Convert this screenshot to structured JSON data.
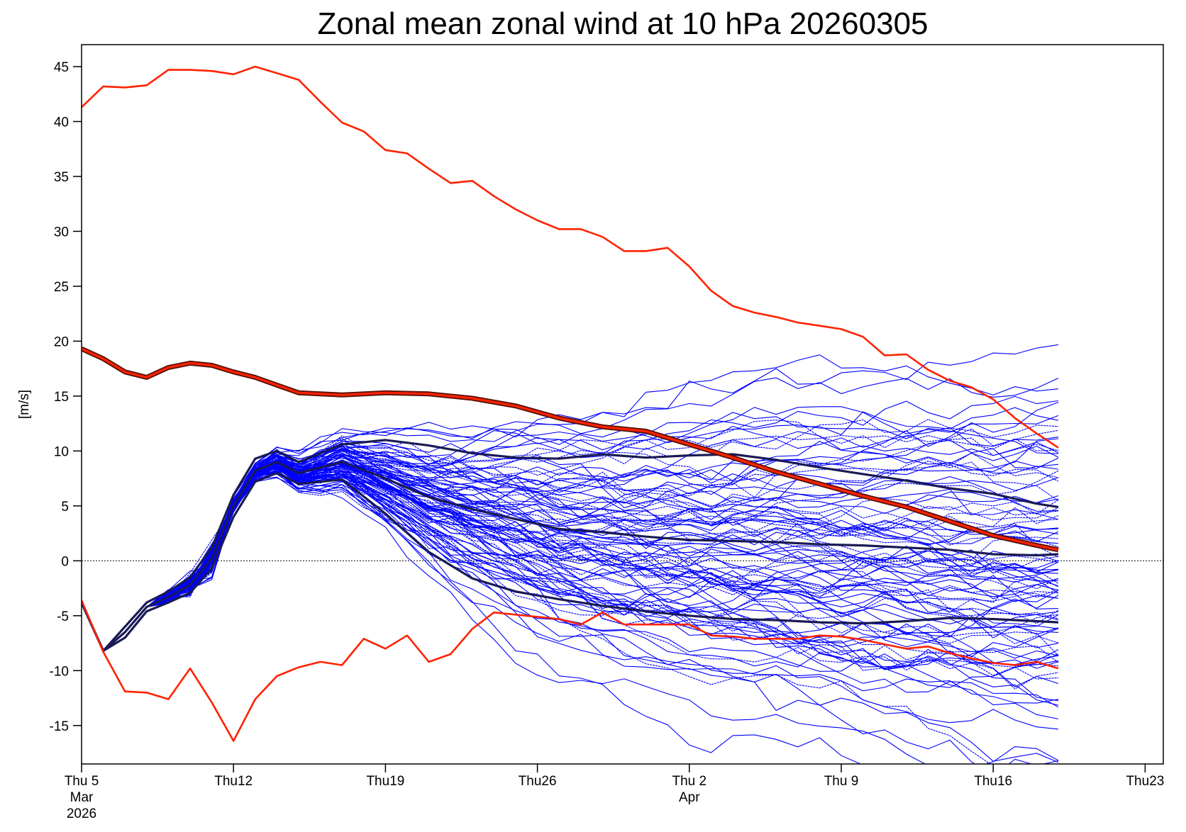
{
  "chart_data": {
    "type": "line",
    "title": "Zonal mean zonal wind at 10 hPa 20260305",
    "ylabel": "[m/s]",
    "xlabel": "",
    "ylim": [
      -18.5,
      47
    ],
    "xlim_days": "2026-03-05 to 2026-04-23",
    "x_range": [
      "2026-03-05",
      "2026-04-23"
    ],
    "y_ticks": [
      45,
      40,
      35,
      30,
      25,
      20,
      15,
      10,
      5,
      0,
      -5,
      -10,
      -15
    ],
    "x_ticks": [
      {
        "date": "2026-03-05",
        "lines": [
          "Thu 5",
          "Mar",
          "2026"
        ]
      },
      {
        "date": "2026-03-12",
        "lines": [
          "Thu12"
        ]
      },
      {
        "date": "2026-03-19",
        "lines": [
          "Thu19"
        ]
      },
      {
        "date": "2026-03-26",
        "lines": [
          "Thu26"
        ]
      },
      {
        "date": "2026-04-02",
        "lines": [
          "Thu 2",
          "Apr"
        ]
      },
      {
        "date": "2026-04-09",
        "lines": [
          "Thu 9"
        ]
      },
      {
        "date": "2026-04-16",
        "lines": [
          "Thu16"
        ]
      },
      {
        "date": "2026-04-23",
        "lines": [
          "Thu23"
        ]
      }
    ],
    "grid": false,
    "reference_line": {
      "y": 0,
      "style": "dotted"
    },
    "colors": {
      "ensemble": "#0000ff",
      "percentile": "#1a1a55",
      "climatology": "#ff2200",
      "climatology_outline": "#5a1208"
    },
    "ensemble": {
      "members": 100,
      "x_start": "2026-03-05",
      "step_days": 1,
      "common_start": [
        -3.8,
        -8.2,
        -6.5,
        -4.2,
        -3.3,
        -2.2,
        0.2
      ],
      "peak_anchor": {
        "date": "2026-03-14",
        "value": 9.0
      }
    },
    "series": [
      {
        "kind": "climatology_mean",
        "x": [
          "2026-03-05",
          "2026-03-06",
          "2026-03-07",
          "2026-03-08",
          "2026-03-09",
          "2026-03-10",
          "2026-03-11",
          "2026-03-12",
          "2026-03-13",
          "2026-03-14",
          "2026-03-15",
          "2026-03-17",
          "2026-03-19",
          "2026-03-21",
          "2026-03-23",
          "2026-03-25",
          "2026-03-27",
          "2026-03-29",
          "2026-03-31",
          "2026-04-02",
          "2026-04-04",
          "2026-04-06",
          "2026-04-08",
          "2026-04-10",
          "2026-04-12",
          "2026-04-14",
          "2026-04-16",
          "2026-04-18",
          "2026-04-19"
        ],
        "values": [
          19.3,
          18.4,
          17.2,
          16.7,
          17.6,
          18.0,
          17.8,
          17.2,
          16.7,
          16.0,
          15.3,
          15.1,
          15.3,
          15.2,
          14.8,
          14.1,
          13.0,
          12.2,
          11.8,
          10.6,
          9.4,
          8.1,
          7.0,
          5.9,
          4.9,
          3.6,
          2.3,
          1.4,
          1.0
        ]
      },
      {
        "kind": "climatology_max",
        "x": [
          "2026-03-05",
          "2026-03-06",
          "2026-03-07",
          "2026-03-08",
          "2026-03-09",
          "2026-03-10",
          "2026-03-11",
          "2026-03-12",
          "2026-03-13",
          "2026-03-14",
          "2026-03-15",
          "2026-03-16",
          "2026-03-17",
          "2026-03-18",
          "2026-03-19",
          "2026-03-20",
          "2026-03-21",
          "2026-03-22",
          "2026-03-23",
          "2026-03-24",
          "2026-03-25",
          "2026-03-26",
          "2026-03-27",
          "2026-03-28",
          "2026-03-29",
          "2026-03-30",
          "2026-03-31",
          "2026-04-01",
          "2026-04-02",
          "2026-04-03",
          "2026-04-04",
          "2026-04-05",
          "2026-04-06",
          "2026-04-07",
          "2026-04-08",
          "2026-04-09",
          "2026-04-10",
          "2026-04-11",
          "2026-04-12",
          "2026-04-13",
          "2026-04-14",
          "2026-04-15",
          "2026-04-16",
          "2026-04-17",
          "2026-04-18",
          "2026-04-19"
        ],
        "values": [
          41.3,
          43.2,
          43.1,
          43.3,
          44.7,
          44.7,
          44.6,
          44.3,
          45.0,
          44.4,
          43.8,
          41.8,
          39.9,
          39.1,
          37.4,
          37.1,
          35.7,
          34.4,
          34.6,
          33.2,
          32.0,
          31.0,
          30.2,
          30.2,
          29.5,
          28.2,
          28.2,
          28.5,
          26.8,
          24.6,
          23.2,
          22.6,
          22.2,
          21.7,
          21.4,
          21.1,
          20.4,
          18.7,
          18.8,
          17.4,
          16.4,
          15.8,
          14.7,
          13.0,
          11.6,
          10.3
        ]
      },
      {
        "kind": "climatology_min",
        "x": [
          "2026-03-05",
          "2026-03-06",
          "2026-03-07",
          "2026-03-08",
          "2026-03-09",
          "2026-03-10",
          "2026-03-11",
          "2026-03-12",
          "2026-03-13",
          "2026-03-14",
          "2026-03-15",
          "2026-03-16",
          "2026-03-17",
          "2026-03-18",
          "2026-03-19",
          "2026-03-20",
          "2026-03-21",
          "2026-03-22",
          "2026-03-23",
          "2026-03-24",
          "2026-03-25",
          "2026-03-26",
          "2026-03-27",
          "2026-03-28",
          "2026-03-29",
          "2026-03-30",
          "2026-03-31",
          "2026-04-01",
          "2026-04-02",
          "2026-04-03",
          "2026-04-04",
          "2026-04-05",
          "2026-04-06",
          "2026-04-07",
          "2026-04-08",
          "2026-04-09",
          "2026-04-10",
          "2026-04-11",
          "2026-04-12",
          "2026-04-13",
          "2026-04-14",
          "2026-04-15",
          "2026-04-16",
          "2026-04-17",
          "2026-04-18",
          "2026-04-19"
        ],
        "values": [
          -3.6,
          -8.3,
          -11.9,
          -12.0,
          -12.6,
          -9.8,
          -12.9,
          -16.4,
          -12.6,
          -10.5,
          -9.7,
          -9.2,
          -9.5,
          -7.1,
          -8.0,
          -6.8,
          -9.2,
          -8.5,
          -6.2,
          -4.7,
          -4.9,
          -5.1,
          -5.3,
          -5.8,
          -4.7,
          -5.8,
          -5.8,
          -5.8,
          -5.8,
          -6.8,
          -6.9,
          -7.1,
          -7.1,
          -7.1,
          -6.8,
          -6.9,
          -7.2,
          -7.6,
          -8.0,
          -7.8,
          -8.4,
          -8.9,
          -9.3,
          -9.5,
          -9.2,
          -9.8
        ]
      },
      {
        "kind": "ensemble_median",
        "x": [
          "2026-03-05",
          "2026-03-06",
          "2026-03-07",
          "2026-03-08",
          "2026-03-09",
          "2026-03-10",
          "2026-03-11",
          "2026-03-12",
          "2026-03-13",
          "2026-03-14",
          "2026-03-15",
          "2026-03-17",
          "2026-03-19",
          "2026-03-21",
          "2026-03-23",
          "2026-03-25",
          "2026-03-27",
          "2026-03-29",
          "2026-03-31",
          "2026-04-02",
          "2026-04-04",
          "2026-04-06",
          "2026-04-08",
          "2026-04-10",
          "2026-04-12",
          "2026-04-14",
          "2026-04-16",
          "2026-04-18",
          "2026-04-19"
        ],
        "values": [
          -3.8,
          -8.2,
          -6.5,
          -4.2,
          -3.3,
          -2.2,
          0.2,
          5.0,
          8.2,
          9.0,
          8.0,
          9.0,
          7.5,
          5.8,
          4.7,
          3.8,
          2.9,
          2.6,
          2.2,
          1.9,
          1.8,
          1.7,
          1.5,
          1.4,
          1.2,
          1.0,
          0.6,
          0.5,
          0.6
        ]
      },
      {
        "kind": "ensemble_upper_percentile",
        "x": [
          "2026-03-05",
          "2026-03-06",
          "2026-03-07",
          "2026-03-08",
          "2026-03-09",
          "2026-03-10",
          "2026-03-11",
          "2026-03-12",
          "2026-03-13",
          "2026-03-14",
          "2026-03-15",
          "2026-03-17",
          "2026-03-19",
          "2026-03-21",
          "2026-03-23",
          "2026-03-25",
          "2026-03-27",
          "2026-03-29",
          "2026-03-31",
          "2026-04-02",
          "2026-04-04",
          "2026-04-06",
          "2026-04-08",
          "2026-04-10",
          "2026-04-12",
          "2026-04-14",
          "2026-04-16",
          "2026-04-18",
          "2026-04-19"
        ],
        "values": [
          -3.8,
          -8.2,
          -6.0,
          -3.8,
          -2.8,
          -1.5,
          1.2,
          6.0,
          9.3,
          10.0,
          9.0,
          10.6,
          11.0,
          10.5,
          9.8,
          9.4,
          9.3,
          9.7,
          9.4,
          9.6,
          9.7,
          9.2,
          8.5,
          7.9,
          7.3,
          6.6,
          6.1,
          5.2,
          4.9
        ]
      },
      {
        "kind": "ensemble_lower_percentile",
        "x": [
          "2026-03-05",
          "2026-03-06",
          "2026-03-07",
          "2026-03-08",
          "2026-03-09",
          "2026-03-10",
          "2026-03-11",
          "2026-03-12",
          "2026-03-13",
          "2026-03-14",
          "2026-03-15",
          "2026-03-17",
          "2026-03-19",
          "2026-03-21",
          "2026-03-23",
          "2026-03-25",
          "2026-03-27",
          "2026-03-29",
          "2026-03-31",
          "2026-04-02",
          "2026-04-04",
          "2026-04-06",
          "2026-04-08",
          "2026-04-10",
          "2026-04-12",
          "2026-04-14",
          "2026-04-16",
          "2026-04-18",
          "2026-04-19"
        ],
        "values": [
          -3.8,
          -8.2,
          -7.0,
          -4.6,
          -3.8,
          -2.9,
          -0.7,
          4.0,
          7.2,
          8.0,
          7.0,
          7.4,
          4.3,
          0.8,
          -1.6,
          -2.8,
          -3.5,
          -4.1,
          -4.6,
          -5.0,
          -5.3,
          -5.4,
          -5.6,
          -5.7,
          -5.5,
          -5.2,
          -5.3,
          -5.5,
          -5.6
        ]
      }
    ]
  }
}
